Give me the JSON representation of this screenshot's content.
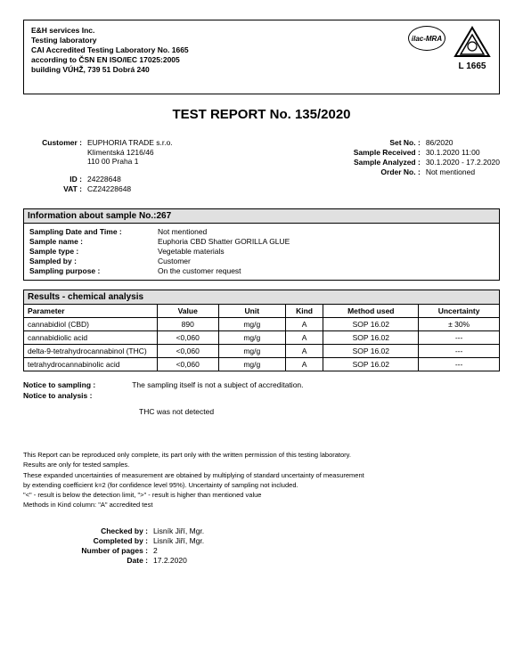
{
  "header": {
    "line1": "E&H services Inc.",
    "line2": "Testing laboratory",
    "line3": "CAI Accredited Testing Laboratory No. 1665",
    "line4": "according to ČSN EN ISO/IEC 17025:2005",
    "line5": "building VÚHŽ, 739 51 Dobrá 240",
    "ilac": "ilac-MRA",
    "l1665": "L 1665"
  },
  "title": "TEST REPORT No. 135/2020",
  "customer": {
    "label": "Customer :",
    "line1": "EUPHORIA TRADE s.r.o.",
    "line2": "Klimentská 1216/46",
    "line3": "110 00 Praha 1",
    "id_label": "ID :",
    "id": "24228648",
    "vat_label": "VAT :",
    "vat": "CZ24228648"
  },
  "right": {
    "set_label": "Set No. :",
    "set": "86/2020",
    "recv_label": "Sample Received :",
    "recv": "30.1.2020  11:00",
    "anal_label": "Sample Analyzed :",
    "anal": "30.1.2020  -  17.2.2020",
    "order_label": "Order No. :",
    "order": "Not mentioned"
  },
  "info": {
    "head": "Information about sample No.:267",
    "dt_label": "Sampling Date and Time :",
    "dt": "Not mentioned",
    "name_label": "Sample name :",
    "name": "Euphoria CBD Shatter GORILLA GLUE",
    "type_label": "Sample type :",
    "type": "Vegetable materials",
    "by_label": "Sampled by :",
    "by": "Customer",
    "purp_label": "Sampling purpose :",
    "purp": "On the customer request"
  },
  "results": {
    "head": "Results - chemical analysis",
    "cols": {
      "param": "Parameter",
      "value": "Value",
      "unit": "Unit",
      "kind": "Kind",
      "method": "Method used",
      "unc": "Uncertainty"
    },
    "rows": [
      {
        "param": "cannabidiol (CBD)",
        "value": "890",
        "unit": "mg/g",
        "kind": "A",
        "method": "SOP 16.02",
        "unc": "± 30%"
      },
      {
        "param": "cannabidiolic acid",
        "value": "<0,060",
        "unit": "mg/g",
        "kind": "A",
        "method": "SOP 16.02",
        "unc": "---"
      },
      {
        "param": "delta-9-tetrahydrocannabinol (THC)",
        "value": "<0,060",
        "unit": "mg/g",
        "kind": "A",
        "method": "SOP 16.02",
        "unc": "---"
      },
      {
        "param": "tetrahydrocannabinolic acid",
        "value": "<0,060",
        "unit": "mg/g",
        "kind": "A",
        "method": "SOP 16.02",
        "unc": "---"
      }
    ]
  },
  "notices": {
    "samp_label": "Notice to sampling :",
    "samp": "The sampling itself is not a subject of accreditation.",
    "anal_label": "Notice to analysis :",
    "thc": "THC was not detected"
  },
  "small": {
    "l1": "This Report can be reproduced only complete, its part only with the written permission of this testing laboratory.",
    "l2": "Results are only for tested samples.",
    "l3": "These expanded uncertainties of measurement are obtained by multiplying of standard uncertainty of measurement",
    "l4": "by extending coefficient k=2 (for confidence level 95%). Uncertainty of sampling not included.",
    "l5": "\"<\" - result is below the detection limit,   \">\" - result is higher than mentioned value",
    "l6": "Methods in Kind column:       \"A\" accredited test"
  },
  "footer": {
    "chk_label": "Checked by :",
    "chk": "Lisník Jiří, Mgr.",
    "cmp_label": "Completed by :",
    "cmp": "Lisník Jiří, Mgr.",
    "pg_label": "Number of pages :",
    "pg": "2",
    "dt_label": "Date :",
    "dt": "17.2.2020"
  }
}
